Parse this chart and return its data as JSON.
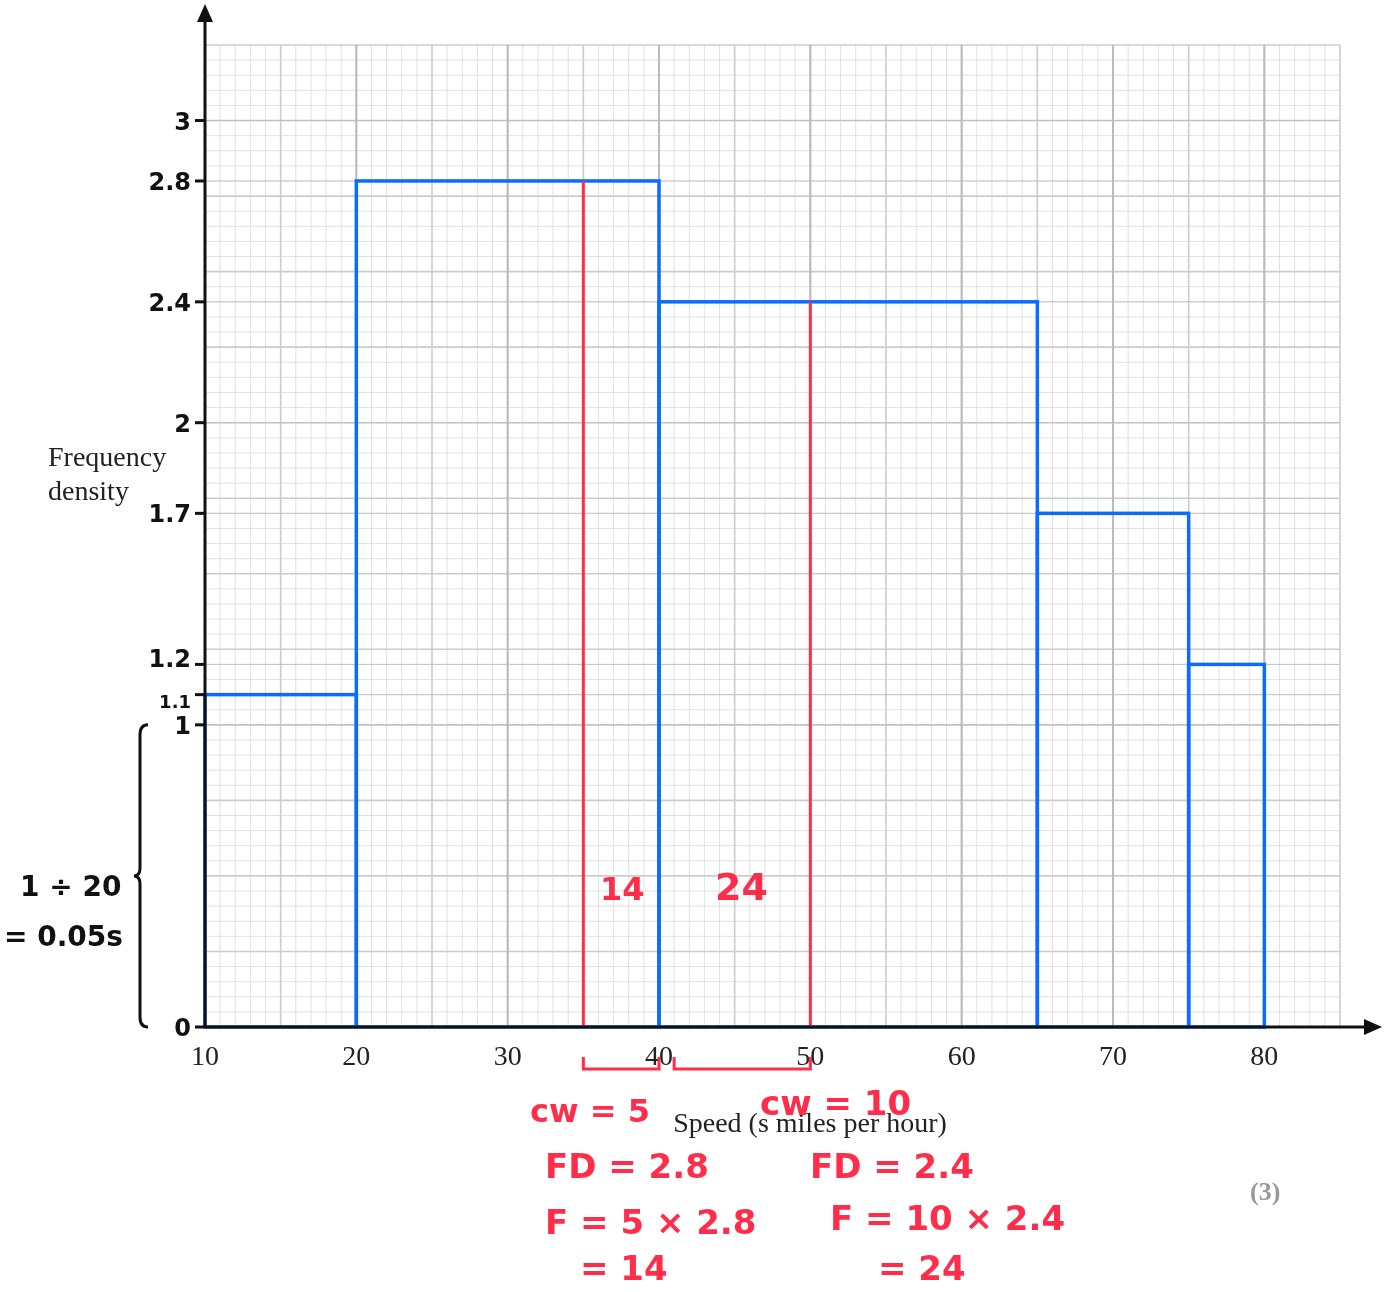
{
  "chart_data": {
    "type": "histogram",
    "xlabel": "Speed (s miles per hour)",
    "ylabel": "Frequency density",
    "bins": [
      10,
      20,
      40,
      65,
      75,
      80
    ],
    "values": [
      1.1,
      2.8,
      2.4,
      1.7,
      1.2
    ],
    "color": "#0a6cff",
    "xlim": [
      10,
      85
    ],
    "ylim": [
      0,
      3.25
    ],
    "xticks": [
      10,
      20,
      30,
      40,
      50,
      60,
      70,
      80
    ],
    "yticks": [
      0,
      1,
      1.1,
      1.2,
      1.7,
      2,
      2.4,
      2.8,
      3
    ],
    "grid": true,
    "ref_lines": [
      {
        "axis": "x",
        "value": 35,
        "color": "#ff2d4a"
      },
      {
        "axis": "x",
        "value": 50,
        "color": "#ff2d4a"
      }
    ],
    "annotations": [
      "14",
      "24",
      "cw = 5",
      "cw = 10",
      "FD = 2.8",
      "FD = 2.4",
      "F = 5 × 2.8",
      "= 14",
      "F = 10 × 2.4",
      "= 24",
      "1 ÷ 20",
      "= 0.05s",
      "(3)"
    ]
  }
}
